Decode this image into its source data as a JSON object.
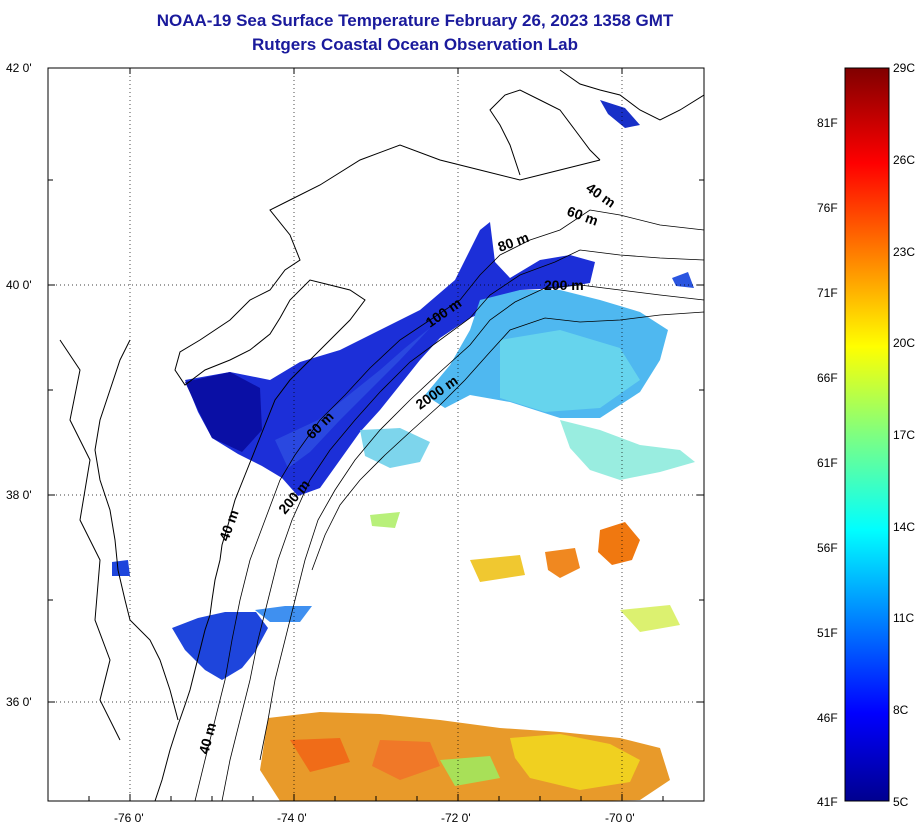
{
  "title": {
    "line1": "NOAA-19 Sea Surface Temperature February 26, 2023 1358 GMT",
    "line2": "Rutgers Coastal Ocean Observation Lab"
  },
  "map": {
    "lat_labels": [
      "42 0'",
      "40 0'",
      "38 0'",
      "36 0'"
    ],
    "lon_labels": [
      "-76 0'",
      "-74 0'",
      "-72 0'",
      "-70 0'"
    ],
    "isobath_labels": [
      "40 m",
      "60 m",
      "80 m",
      "200 m",
      "100 m",
      "2000 m",
      "60 m",
      "200 m",
      "40 m",
      "40 m"
    ]
  },
  "colorbar": {
    "fahrenheit": [
      "81F",
      "76F",
      "71F",
      "66F",
      "61F",
      "56F",
      "51F",
      "46F",
      "41F"
    ],
    "celsius": [
      "29C",
      "26C",
      "23C",
      "20C",
      "17C",
      "14C",
      "11C",
      "8C",
      "5C"
    ]
  },
  "colors": {
    "title": "#1a1a9c",
    "cold": "#00008f",
    "warm": "#800000"
  }
}
